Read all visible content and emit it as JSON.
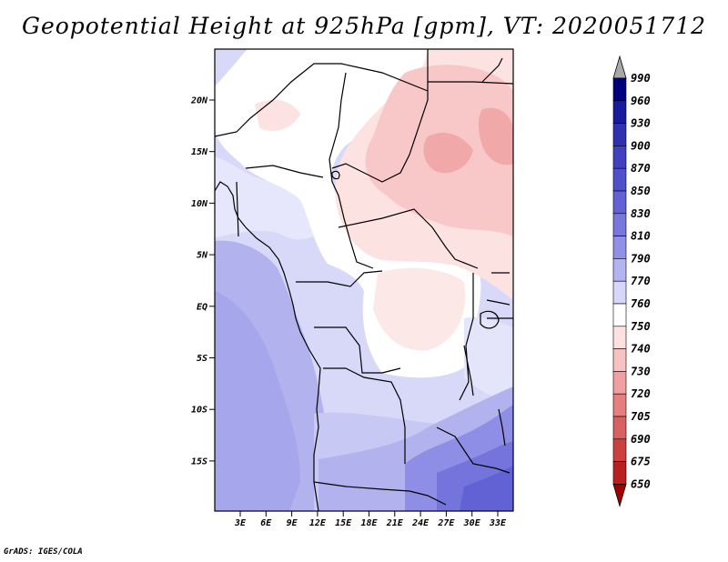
{
  "title": "Geopotential Height at 925hPa [gpm], VT: 2020051712",
  "credit": "GrADS: IGES/COLA",
  "map": {
    "lat_axis": [
      "20N",
      "15N",
      "10N",
      "5N",
      "EQ",
      "5S",
      "10S",
      "15S"
    ],
    "lon_axis": [
      "3E",
      "6E",
      "9E",
      "12E",
      "15E",
      "18E",
      "21E",
      "24E",
      "27E",
      "30E",
      "33E"
    ]
  },
  "colorbar": {
    "levels": [
      "990",
      "960",
      "930",
      "900",
      "870",
      "850",
      "830",
      "810",
      "790",
      "770",
      "760",
      "750",
      "740",
      "730",
      "720",
      "705",
      "690",
      "675",
      "650"
    ],
    "colors": [
      "#00007f",
      "#1a1a9c",
      "#3030b0",
      "#4040c0",
      "#5050cc",
      "#6262d6",
      "#7878dc",
      "#9090e6",
      "#b4b4f0",
      "#d6d6fa",
      "#ffffff",
      "#fde0e0",
      "#f8c2c2",
      "#f0a0a0",
      "#e48080",
      "#d86060",
      "#cc4040",
      "#bb2020",
      "#a00000"
    ],
    "extend_top_color": "#a8a8a8",
    "extend_bottom_color": "#a00000"
  }
}
